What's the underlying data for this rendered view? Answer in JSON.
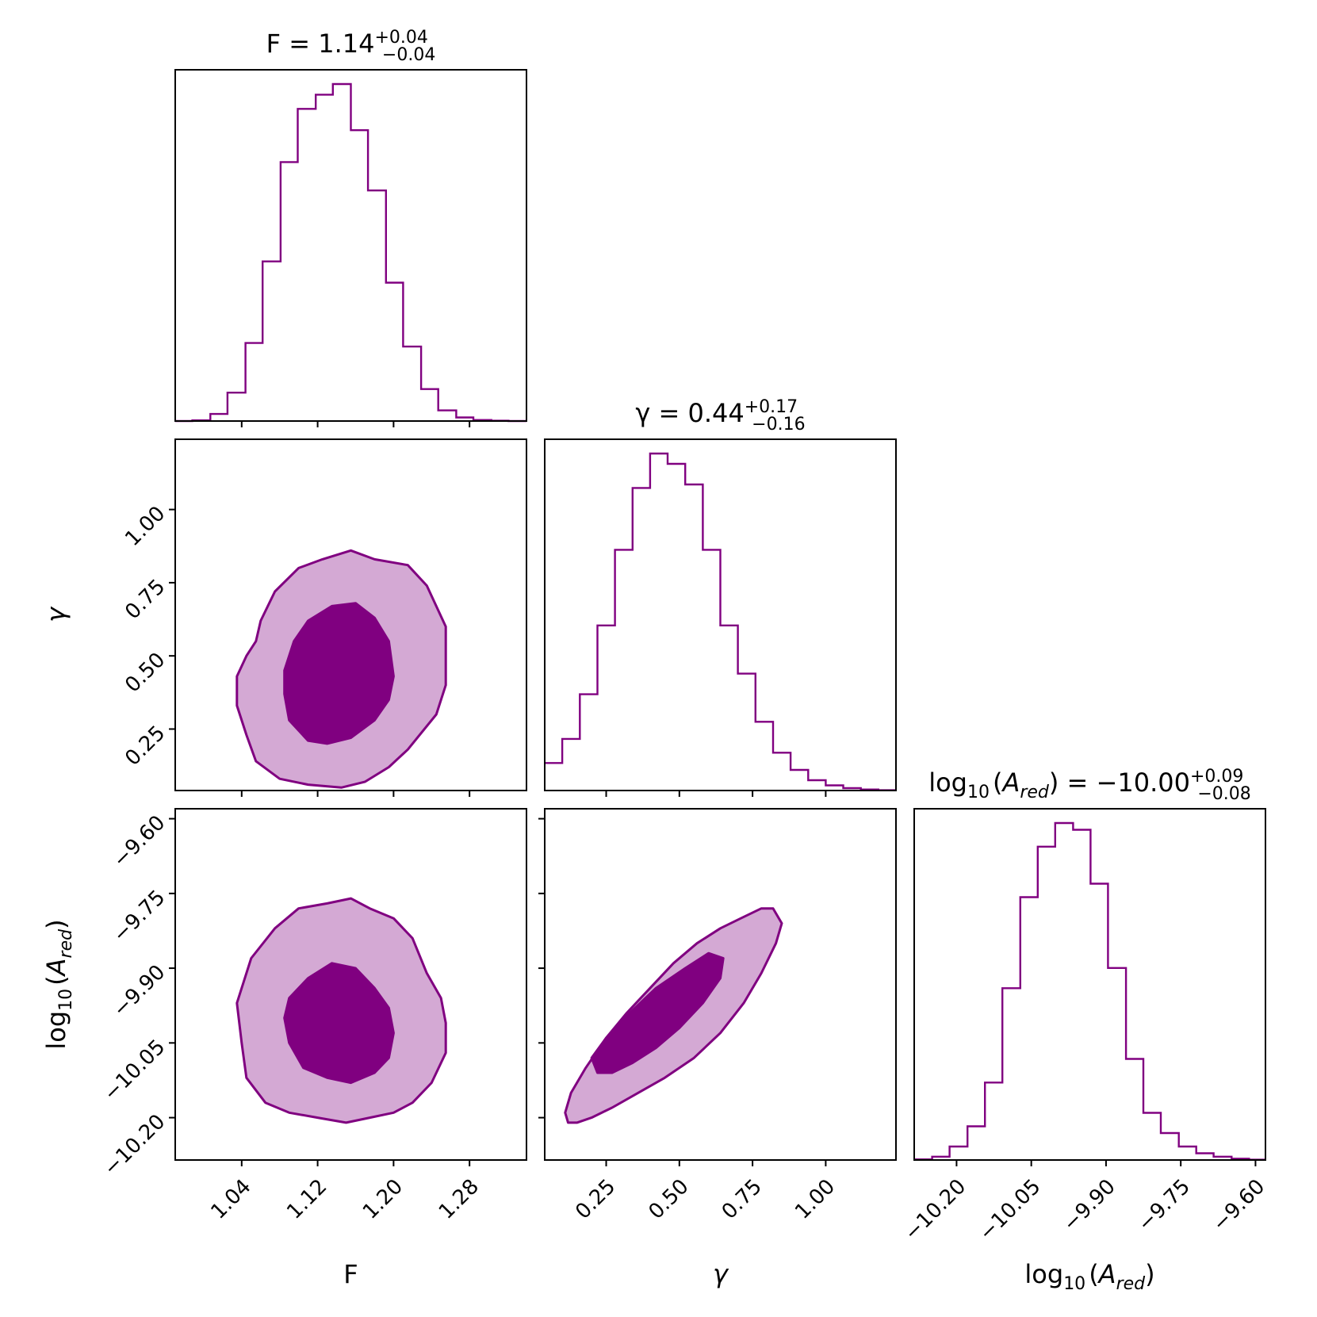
{
  "chart_data": {
    "type": "corner",
    "color": "#800080",
    "inner_fill": "#800080",
    "outer_fill": "#d4a9d4",
    "parameters": [
      {
        "key": "F",
        "label": "F",
        "label_italic": false,
        "ticks": [
          "1.04",
          "1.12",
          "1.20",
          "1.28"
        ],
        "tick_values": [
          1.04,
          1.12,
          1.2,
          1.28
        ],
        "range": [
          0.97,
          1.34
        ]
      },
      {
        "key": "gamma",
        "label": "γ",
        "label_italic": true,
        "ticks": [
          "0.25",
          "0.50",
          "0.75",
          "1.00"
        ],
        "tick_values": [
          0.25,
          0.5,
          0.75,
          1.0
        ],
        "range": [
          0.04,
          1.24
        ]
      },
      {
        "key": "log10_A_red",
        "label": "log",
        "label_sub": "10",
        "label_rest": "(",
        "label_var": "A",
        "label_var_sub": "red",
        "label_close": ")",
        "ticks": [
          "−10.20",
          "−10.05",
          "−9.90",
          "−9.75",
          "−9.60"
        ],
        "tick_values": [
          -10.2,
          -10.05,
          -9.9,
          -9.75,
          -9.6
        ],
        "range": [
          -10.285,
          -9.58
        ]
      }
    ],
    "titles": [
      {
        "prefix": "F = 1.14",
        "up": "+0.04",
        "down": "−0.04"
      },
      {
        "prefix": "γ = 0.44",
        "up": "+0.17",
        "down": "−0.16"
      },
      {
        "prefix": "log",
        "sub": "10",
        "mid": "(",
        "var": "A",
        "var_sub": "red",
        "suffix": ") = −10.00",
        "up": "+0.09",
        "down": "−0.08"
      }
    ],
    "histograms": [
      {
        "param": "F",
        "edges": [
          0.97,
          0.988,
          1.007,
          1.025,
          1.044,
          1.062,
          1.081,
          1.099,
          1.118,
          1.136,
          1.155,
          1.173,
          1.192,
          1.21,
          1.229,
          1.247,
          1.266,
          1.284,
          1.303,
          1.321,
          1.34
        ],
        "counts": [
          0.0,
          0.2,
          2.0,
          8.0,
          22.0,
          45.0,
          73.0,
          88.0,
          92.0,
          95.0,
          82.0,
          65.0,
          39.0,
          21.0,
          9.0,
          3.0,
          1.0,
          0.3,
          0.1,
          0.0
        ]
      },
      {
        "param": "gamma",
        "edges": [
          0.04,
          0.1,
          0.16,
          0.22,
          0.28,
          0.34,
          0.4,
          0.46,
          0.52,
          0.58,
          0.64,
          0.7,
          0.76,
          0.82,
          0.88,
          0.94,
          1.0,
          1.06,
          1.12,
          1.18,
          1.24
        ],
        "counts": [
          8.0,
          15.0,
          28.0,
          48.0,
          70.0,
          88.0,
          98.0,
          95.0,
          89.0,
          70.0,
          48.0,
          34.0,
          20.0,
          11.0,
          6.0,
          3.0,
          1.5,
          0.7,
          0.3,
          0.1
        ]
      },
      {
        "param": "log10_A_red",
        "edges": [
          -10.285,
          -10.249,
          -10.214,
          -10.178,
          -10.143,
          -10.108,
          -10.072,
          -10.037,
          -10.002,
          -9.966,
          -9.931,
          -9.896,
          -9.86,
          -9.825,
          -9.79,
          -9.754,
          -9.719,
          -9.684,
          -9.648,
          -9.613,
          -9.58
        ],
        "counts": [
          0.2,
          1.0,
          4.0,
          10.0,
          23.0,
          51.0,
          78.0,
          93.0,
          100.0,
          98.0,
          82.0,
          57.0,
          30.0,
          14.0,
          8.0,
          4.0,
          2.0,
          1.0,
          0.4,
          0.1
        ]
      }
    ],
    "contours": [
      {
        "x_param": "F",
        "y_param": "gamma",
        "outer": [
          [
            1.055,
            0.55
          ],
          [
            1.06,
            0.62
          ],
          [
            1.075,
            0.72
          ],
          [
            1.1,
            0.8
          ],
          [
            1.125,
            0.83
          ],
          [
            1.155,
            0.86
          ],
          [
            1.18,
            0.83
          ],
          [
            1.215,
            0.81
          ],
          [
            1.235,
            0.74
          ],
          [
            1.255,
            0.6
          ],
          [
            1.255,
            0.4
          ],
          [
            1.245,
            0.3
          ],
          [
            1.215,
            0.18
          ],
          [
            1.195,
            0.12
          ],
          [
            1.17,
            0.07
          ],
          [
            1.145,
            0.05
          ],
          [
            1.11,
            0.06
          ],
          [
            1.08,
            0.08
          ],
          [
            1.055,
            0.14
          ],
          [
            1.045,
            0.23
          ],
          [
            1.035,
            0.33
          ],
          [
            1.035,
            0.43
          ],
          [
            1.045,
            0.5
          ]
        ],
        "inner": [
          [
            1.085,
            0.45
          ],
          [
            1.095,
            0.55
          ],
          [
            1.11,
            0.62
          ],
          [
            1.135,
            0.67
          ],
          [
            1.16,
            0.68
          ],
          [
            1.18,
            0.63
          ],
          [
            1.195,
            0.55
          ],
          [
            1.2,
            0.43
          ],
          [
            1.195,
            0.35
          ],
          [
            1.18,
            0.28
          ],
          [
            1.155,
            0.22
          ],
          [
            1.13,
            0.2
          ],
          [
            1.11,
            0.21
          ],
          [
            1.09,
            0.28
          ],
          [
            1.085,
            0.37
          ]
        ]
      },
      {
        "x_param": "F",
        "y_param": "log10_A_red",
        "outer": [
          [
            1.035,
            -9.97
          ],
          [
            1.05,
            -9.88
          ],
          [
            1.075,
            -9.82
          ],
          [
            1.1,
            -9.78
          ],
          [
            1.13,
            -9.77
          ],
          [
            1.155,
            -9.76
          ],
          [
            1.175,
            -9.78
          ],
          [
            1.2,
            -9.8
          ],
          [
            1.22,
            -9.84
          ],
          [
            1.235,
            -9.91
          ],
          [
            1.25,
            -9.96
          ],
          [
            1.255,
            -10.01
          ],
          [
            1.255,
            -10.07
          ],
          [
            1.24,
            -10.13
          ],
          [
            1.22,
            -10.17
          ],
          [
            1.2,
            -10.19
          ],
          [
            1.175,
            -10.2
          ],
          [
            1.15,
            -10.21
          ],
          [
            1.12,
            -10.2
          ],
          [
            1.09,
            -10.19
          ],
          [
            1.065,
            -10.17
          ],
          [
            1.045,
            -10.12
          ],
          [
            1.04,
            -10.05
          ]
        ],
        "inner": [
          [
            1.085,
            -10.0
          ],
          [
            1.09,
            -9.96
          ],
          [
            1.11,
            -9.92
          ],
          [
            1.135,
            -9.89
          ],
          [
            1.16,
            -9.9
          ],
          [
            1.18,
            -9.94
          ],
          [
            1.195,
            -9.98
          ],
          [
            1.2,
            -10.03
          ],
          [
            1.195,
            -10.08
          ],
          [
            1.18,
            -10.11
          ],
          [
            1.155,
            -10.13
          ],
          [
            1.13,
            -10.12
          ],
          [
            1.105,
            -10.1
          ],
          [
            1.09,
            -10.05
          ]
        ]
      },
      {
        "x_param": "gamma",
        "y_param": "log10_A_red",
        "outer": [
          [
            0.11,
            -10.19
          ],
          [
            0.13,
            -10.15
          ],
          [
            0.18,
            -10.1
          ],
          [
            0.25,
            -10.04
          ],
          [
            0.32,
            -9.99
          ],
          [
            0.4,
            -9.94
          ],
          [
            0.48,
            -9.89
          ],
          [
            0.56,
            -9.85
          ],
          [
            0.64,
            -9.82
          ],
          [
            0.71,
            -9.8
          ],
          [
            0.78,
            -9.78
          ],
          [
            0.82,
            -9.78
          ],
          [
            0.85,
            -9.81
          ],
          [
            0.83,
            -9.85
          ],
          [
            0.78,
            -9.91
          ],
          [
            0.72,
            -9.97
          ],
          [
            0.64,
            -10.03
          ],
          [
            0.55,
            -10.08
          ],
          [
            0.45,
            -10.12
          ],
          [
            0.36,
            -10.15
          ],
          [
            0.27,
            -10.18
          ],
          [
            0.2,
            -10.2
          ],
          [
            0.15,
            -10.21
          ],
          [
            0.12,
            -10.21
          ]
        ],
        "inner": [
          [
            0.2,
            -10.08
          ],
          [
            0.25,
            -10.04
          ],
          [
            0.33,
            -9.99
          ],
          [
            0.42,
            -9.94
          ],
          [
            0.52,
            -9.9
          ],
          [
            0.6,
            -9.87
          ],
          [
            0.65,
            -9.88
          ],
          [
            0.64,
            -9.92
          ],
          [
            0.58,
            -9.97
          ],
          [
            0.5,
            -10.02
          ],
          [
            0.42,
            -10.06
          ],
          [
            0.34,
            -10.09
          ],
          [
            0.27,
            -10.11
          ],
          [
            0.22,
            -10.11
          ]
        ]
      }
    ]
  }
}
